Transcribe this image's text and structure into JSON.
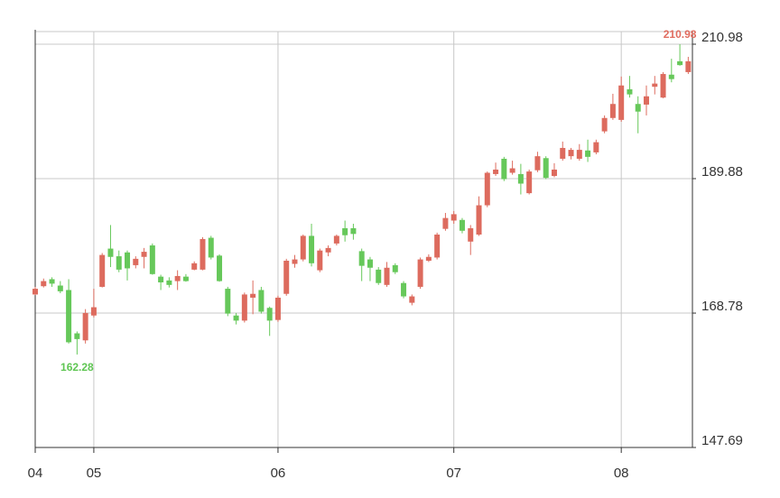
{
  "chart_data": {
    "type": "candlestick",
    "categories": [
      "04",
      null,
      null,
      null,
      null,
      null,
      null,
      "05",
      null,
      null,
      null,
      null,
      null,
      null,
      null,
      null,
      null,
      null,
      null,
      null,
      null,
      null,
      null,
      null,
      null,
      null,
      null,
      null,
      null,
      "06",
      null,
      null,
      null,
      null,
      null,
      null,
      null,
      null,
      null,
      null,
      null,
      null,
      null,
      null,
      null,
      null,
      null,
      null,
      null,
      null,
      "07",
      null,
      null,
      null,
      null,
      null,
      null,
      null,
      null,
      null,
      null,
      null,
      null,
      null,
      null,
      null,
      null,
      null,
      null,
      null,
      "08",
      null,
      null,
      null,
      null,
      null,
      null,
      null,
      null
    ],
    "open": [
      171.7,
      173.0,
      174.1,
      173.1,
      172.4,
      165.6,
      164.5,
      168.4,
      172.9,
      178.9,
      177.7,
      178.3,
      176.3,
      177.6,
      179.4,
      174.5,
      173.9,
      173.8,
      174.5,
      175.6,
      175.6,
      180.6,
      177.8,
      172.6,
      168.4,
      167.6,
      171.2,
      172.4,
      169.6,
      167.7,
      171.8,
      176.5,
      177.2,
      180.9,
      175.5,
      178.3,
      179.7,
      182.1,
      182.1,
      178.5,
      177.2,
      175.6,
      173.2,
      176.3,
      173.5,
      170.4,
      172.9,
      177.0,
      177.5,
      182.0,
      183.3,
      183.4,
      180.0,
      181.1,
      185.7,
      190.6,
      193.0,
      190.8,
      190.6,
      187.6,
      191.2,
      193.1,
      190.3,
      193.0,
      193.4,
      193.0,
      194.3,
      194.0,
      197.3,
      199.4,
      199.1,
      203.9,
      201.6,
      201.5,
      204.3,
      202.6,
      206.2,
      208.3,
      206.6
    ],
    "high": [
      172.9,
      174.2,
      174.4,
      173.8,
      174.1,
      165.9,
      169.4,
      172.6,
      178.2,
      182.6,
      178.6,
      178.6,
      177.7,
      179.0,
      179.7,
      174.8,
      174.4,
      175.5,
      174.9,
      176.9,
      180.7,
      180.9,
      178.0,
      172.9,
      168.8,
      172.0,
      173.9,
      172.9,
      169.8,
      171.5,
      177.3,
      177.9,
      181.1,
      182.8,
      178.9,
      179.4,
      181.1,
      183.3,
      182.8,
      178.9,
      177.6,
      176.0,
      176.8,
      176.6,
      173.8,
      171.7,
      177.5,
      178.0,
      181.4,
      184.5,
      184.8,
      183.7,
      182.6,
      187.1,
      191.0,
      192.4,
      193.3,
      192.7,
      192.2,
      191.3,
      194.1,
      193.4,
      192.3,
      195.7,
      194.7,
      195.3,
      196.0,
      196.0,
      199.8,
      203.2,
      205.9,
      206.0,
      202.8,
      204.5,
      206.0,
      206.6,
      208.7,
      210.98,
      209.0
    ],
    "low": [
      171.6,
      172.8,
      172.9,
      171.9,
      164.0,
      162.28,
      164.0,
      168.1,
      172.8,
      176.0,
      175.2,
      173.9,
      175.8,
      175.8,
      174.8,
      172.4,
      172.8,
      172.4,
      173.7,
      175.5,
      175.5,
      177.2,
      173.7,
      168.3,
      167.0,
      167.3,
      168.6,
      168.7,
      165.2,
      167.4,
      171.5,
      175.9,
      176.9,
      176.1,
      175.2,
      177.7,
      179.4,
      180.0,
      180.3,
      173.8,
      173.8,
      173.2,
      172.9,
      174.9,
      171.1,
      170.0,
      172.6,
      176.8,
      177.2,
      181.7,
      182.8,
      181.3,
      177.9,
      180.9,
      185.4,
      190.3,
      189.5,
      190.5,
      187.4,
      187.4,
      190.9,
      189.8,
      190.1,
      192.7,
      192.9,
      192.7,
      192.5,
      193.7,
      197.0,
      199.1,
      198.8,
      202.6,
      197.0,
      199.8,
      203.1,
      202.5,
      205.0,
      207.6,
      206.3
    ],
    "close": [
      172.6,
      173.8,
      173.4,
      172.2,
      164.2,
      164.7,
      168.8,
      169.7,
      177.9,
      177.6,
      175.6,
      175.8,
      177.3,
      178.4,
      174.9,
      173.6,
      173.2,
      174.6,
      173.8,
      176.6,
      180.4,
      177.5,
      173.8,
      168.7,
      167.6,
      171.7,
      171.8,
      169.0,
      167.6,
      171.2,
      177.0,
      177.2,
      180.9,
      176.6,
      178.6,
      179.0,
      180.9,
      181.0,
      181.2,
      176.2,
      175.9,
      173.5,
      175.9,
      175.2,
      171.4,
      171.4,
      177.2,
      177.6,
      181.1,
      183.7,
      184.3,
      181.7,
      182.1,
      185.7,
      190.8,
      191.3,
      189.8,
      191.5,
      189.1,
      191.0,
      193.4,
      190.0,
      191.3,
      194.7,
      194.4,
      194.4,
      193.3,
      195.6,
      199.4,
      201.6,
      204.5,
      203.1,
      200.4,
      202.8,
      204.8,
      206.3,
      205.5,
      207.7,
      208.3
    ],
    "up_color": "#dd6b5e",
    "down_color": "#66c85a",
    "ylim": [
      147.69,
      212.96
    ],
    "yticks": [
      147.69,
      168.78,
      189.88,
      210.98
    ],
    "grid": true,
    "annotations": [
      {
        "value": 210.98,
        "index": 77,
        "color": "#e06c5f"
      },
      {
        "value": 162.28,
        "index": 5,
        "color": "#5fc653"
      }
    ]
  }
}
